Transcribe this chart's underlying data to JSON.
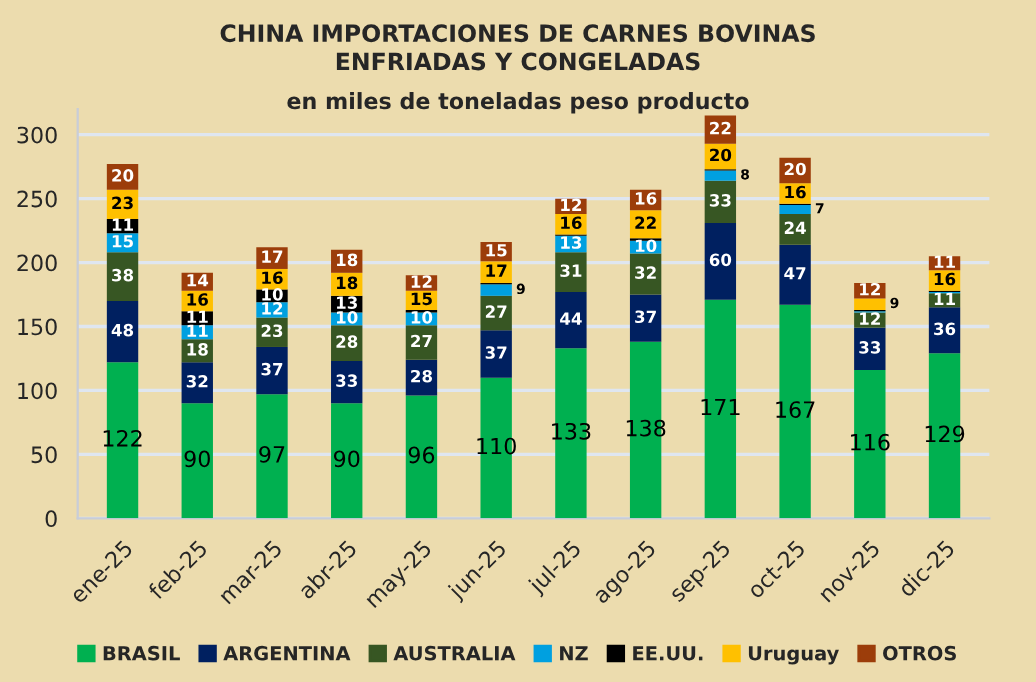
{
  "chart_data": {
    "type": "bar",
    "stacked": true,
    "title": "CHINA IMPORTACIONES DE CARNES BOVINAS\nENFRIADAS Y CONGELADAS",
    "subtitle": "en miles de toneladas peso producto",
    "categories": [
      "ene-25",
      "feb-25",
      "mar-25",
      "abr-25",
      "may-25",
      "jun-25",
      "jul-25",
      "ago-25",
      "sep-25",
      "oct-25",
      "nov-25",
      "dic-25"
    ],
    "series": [
      {
        "name": "BRASIL",
        "color": "#00b050",
        "values": [
          122,
          90,
          97,
          90,
          96,
          110,
          133,
          138,
          171,
          167,
          116,
          129
        ],
        "value_labels": [
          "122",
          "90",
          "97",
          "90",
          "96",
          "110",
          "133",
          "138",
          "171",
          "167",
          "116",
          "129"
        ]
      },
      {
        "name": "ARGENTINA",
        "color": "#002060",
        "values": [
          48,
          32,
          37,
          33,
          28,
          37,
          44,
          37,
          60,
          47,
          33,
          36
        ],
        "value_labels": [
          "48",
          "32",
          "37",
          "33",
          "28",
          "37",
          "44",
          "37",
          "60",
          "47",
          "33",
          "36"
        ]
      },
      {
        "name": "AUSTRALIA",
        "color": "#375623",
        "values": [
          38,
          18,
          23,
          28,
          27,
          27,
          31,
          32,
          33,
          24,
          12,
          11
        ],
        "value_labels": [
          "38",
          "18",
          "23",
          "28",
          "27",
          "27",
          "31",
          "32",
          "33",
          "24",
          "12",
          "11"
        ]
      },
      {
        "name": "NZ",
        "color": "#00a0e0",
        "values": [
          15,
          11,
          12,
          10,
          10,
          9,
          13,
          10,
          8,
          7,
          1,
          1
        ],
        "value_labels": [
          "15",
          "11",
          "12",
          "10",
          "10",
          "9",
          "13",
          "10",
          "8",
          "7",
          null,
          null
        ]
      },
      {
        "name": "EE.UU.",
        "color": "#000000",
        "values": [
          11,
          11,
          10,
          13,
          2,
          1,
          1,
          2,
          1,
          1,
          1,
          1
        ],
        "value_labels": [
          "11",
          "11",
          "10",
          "13",
          null,
          null,
          null,
          null,
          null,
          null,
          null,
          null
        ]
      },
      {
        "name": "Uruguay",
        "color": "#ffc000",
        "values": [
          23,
          16,
          16,
          18,
          15,
          17,
          16,
          22,
          20,
          16,
          9,
          16
        ],
        "value_labels": [
          "23",
          "16",
          "16",
          "18",
          "15",
          "17",
          "16",
          "22",
          "20",
          "16",
          "9",
          "16"
        ]
      },
      {
        "name": "OTROS",
        "color": "#9c3d0a",
        "values": [
          20,
          14,
          17,
          18,
          12,
          15,
          12,
          16,
          22,
          20,
          12,
          11
        ],
        "value_labels": [
          "20",
          "14",
          "17",
          "18",
          "12",
          "15",
          "12",
          "16",
          "22",
          "20",
          "12",
          "11"
        ]
      }
    ],
    "ylim": [
      0,
      320
    ],
    "yticks": [
      0,
      50,
      100,
      150,
      200,
      250,
      300
    ],
    "grid": "y",
    "legend": "bottom"
  }
}
